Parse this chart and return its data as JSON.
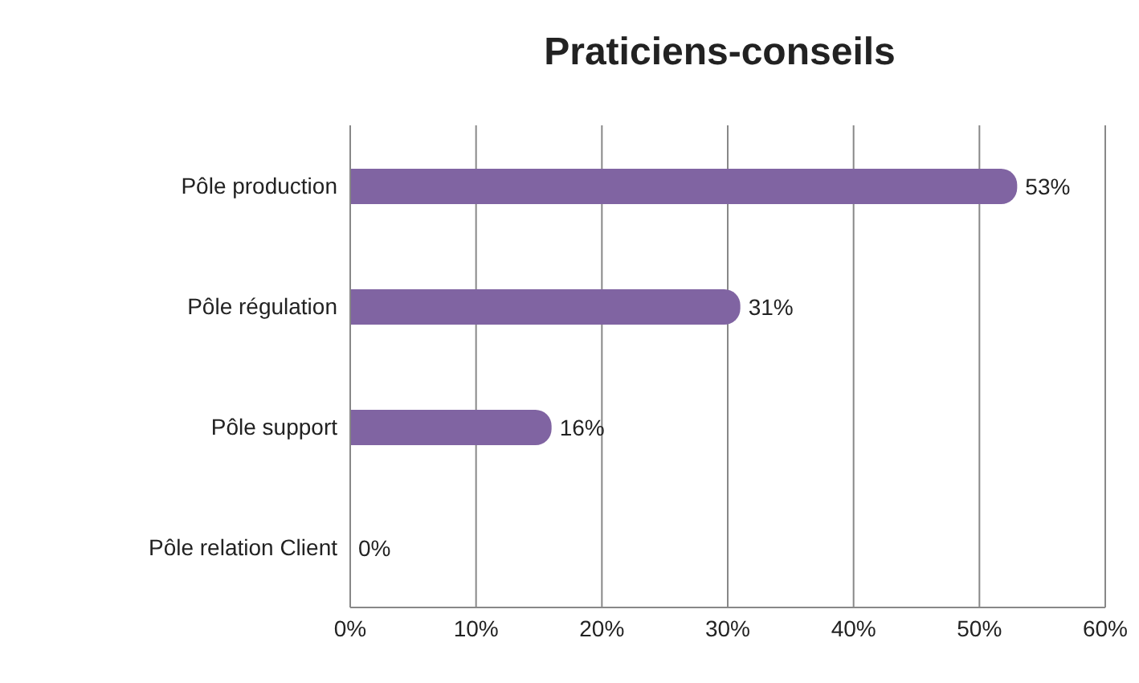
{
  "chart_data": {
    "type": "bar",
    "title": "Praticiens-conseils",
    "orientation": "horizontal",
    "categories": [
      "Pôle production",
      "Pôle régulation",
      "Pôle support",
      "Pôle relation Client"
    ],
    "values": [
      53,
      31,
      16,
      0
    ],
    "value_labels": [
      "53%",
      "31%",
      "16%",
      "0%"
    ],
    "color": "#8064a2",
    "xlim": [
      0,
      60
    ],
    "xticks": [
      {
        "value": 0,
        "label": "0%"
      },
      {
        "value": 10,
        "label": "10%"
      },
      {
        "value": 20,
        "label": "20%"
      },
      {
        "value": 30,
        "label": "30%"
      },
      {
        "value": 40,
        "label": "40%"
      },
      {
        "value": 50,
        "label": "50%"
      },
      {
        "value": 60,
        "label": "60%"
      }
    ],
    "grid": "x",
    "legend": false
  }
}
